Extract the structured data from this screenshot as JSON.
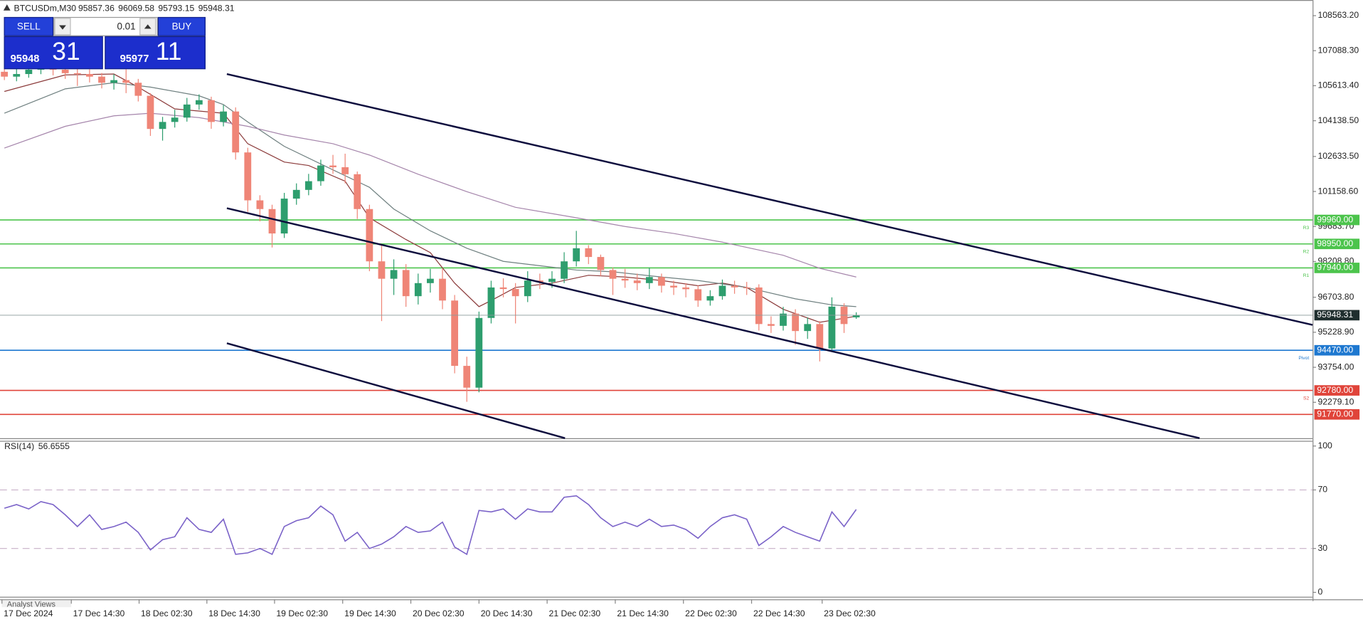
{
  "chart_data": [
    {
      "type": "candlestick",
      "symbol": "BTCUSDm,M30",
      "up_color": "#2e9e6e",
      "down_color": "#ef8577",
      "candles": [
        [
          106200,
          106400,
          105850,
          105995
        ],
        [
          105995,
          106350,
          105800,
          106105
        ],
        [
          106105,
          106500,
          105950,
          106288
        ],
        [
          106288,
          106600,
          106100,
          106362
        ],
        [
          106362,
          106550,
          106050,
          106288
        ],
        [
          106288,
          106450,
          105900,
          106141
        ],
        [
          106141,
          106400,
          105600,
          106105
        ],
        [
          106105,
          106300,
          105750,
          105995
        ],
        [
          105995,
          106150,
          105500,
          105738
        ],
        [
          105738,
          106100,
          105450,
          105848
        ],
        [
          105848,
          106300,
          105300,
          105738
        ],
        [
          105738,
          105900,
          104950,
          105188
        ],
        [
          105188,
          105300,
          103500,
          103793
        ],
        [
          103793,
          104300,
          103300,
          104087
        ],
        [
          104087,
          104600,
          103850,
          104270
        ],
        [
          104270,
          105100,
          104100,
          104821
        ],
        [
          104821,
          105250,
          104600,
          105004
        ],
        [
          105004,
          105150,
          103800,
          104087
        ],
        [
          104087,
          104800,
          103900,
          104527
        ],
        [
          104527,
          104700,
          102500,
          102803
        ],
        [
          102803,
          103000,
          100300,
          100785
        ],
        [
          100785,
          101000,
          99900,
          100418
        ],
        [
          100418,
          100600,
          98800,
          99390
        ],
        [
          99390,
          101100,
          99200,
          100858
        ],
        [
          100858,
          101500,
          100600,
          101225
        ],
        [
          101225,
          101900,
          101000,
          101592
        ],
        [
          101592,
          102500,
          101400,
          102252
        ],
        [
          102252,
          102700,
          101900,
          102180
        ],
        [
          102180,
          102750,
          101500,
          101885
        ],
        [
          101885,
          102000,
          100000,
          100418
        ],
        [
          100418,
          100600,
          97800,
          98216
        ],
        [
          98216,
          98900,
          95700,
          97483
        ],
        [
          97483,
          98300,
          96800,
          97850
        ],
        [
          97850,
          98100,
          96300,
          96749
        ],
        [
          96749,
          97700,
          96400,
          97299
        ],
        [
          97299,
          97900,
          96900,
          97483
        ],
        [
          97483,
          97900,
          96200,
          96565
        ],
        [
          96565,
          96800,
          93500,
          93814
        ],
        [
          93814,
          94200,
          92300,
          92896
        ],
        [
          92896,
          96100,
          92700,
          95832
        ],
        [
          95832,
          97400,
          95600,
          97116
        ],
        [
          97116,
          97500,
          96700,
          97050
        ],
        [
          97050,
          97300,
          95600,
          96749
        ],
        [
          96749,
          97800,
          96500,
          97409
        ],
        [
          97409,
          97700,
          97050,
          97350
        ],
        [
          97350,
          97800,
          97100,
          97483
        ],
        [
          97483,
          98600,
          97300,
          98216
        ],
        [
          98216,
          99500,
          98000,
          98767
        ],
        [
          98767,
          98900,
          98100,
          98400
        ],
        [
          98400,
          98500,
          97600,
          97850
        ],
        [
          97850,
          97950,
          96800,
          97483
        ],
        [
          97483,
          97900,
          97100,
          97409
        ],
        [
          97409,
          97700,
          97000,
          97299
        ],
        [
          97299,
          97950,
          97050,
          97556
        ],
        [
          97556,
          97700,
          96900,
          97189
        ],
        [
          97189,
          97400,
          96800,
          97116
        ],
        [
          97116,
          97300,
          96700,
          97042
        ],
        [
          97042,
          97200,
          96300,
          96565
        ],
        [
          96565,
          97000,
          96350,
          96749
        ],
        [
          96749,
          97450,
          96600,
          97189
        ],
        [
          97189,
          97400,
          96850,
          97120
        ],
        [
          97120,
          97350,
          96800,
          97116
        ],
        [
          97116,
          97250,
          95300,
          95575
        ],
        [
          95575,
          95900,
          95200,
          95500
        ],
        [
          95500,
          96300,
          95300,
          96015
        ],
        [
          96015,
          96200,
          94700,
          95281
        ],
        [
          95281,
          95850,
          94950,
          95575
        ],
        [
          95575,
          95700,
          94000,
          94547
        ],
        [
          94547,
          96700,
          94400,
          96309
        ],
        [
          96309,
          96450,
          95200,
          95575
        ],
        [
          95857.36,
          96069.58,
          95793.15,
          95948.31
        ]
      ],
      "xlim": [
        -0.36,
        107.5
      ],
      "ylim": [
        90768,
        109223
      ],
      "yticks": [
        {
          "value": 92279.1,
          "label": "92279.10"
        },
        {
          "value": 93754,
          "label": "93754.00"
        },
        {
          "value": 95228.9,
          "label": "95228.90"
        },
        {
          "value": 96703.8,
          "label": "96703.80"
        },
        {
          "value": 98208.8,
          "label": "98208.80"
        },
        {
          "value": 99683.7,
          "label": "99683.70"
        },
        {
          "value": 101158.6,
          "label": "101158.60"
        },
        {
          "value": 102633.5,
          "label": "102633.50"
        },
        {
          "value": 104138.5,
          "label": "104138.50"
        },
        {
          "value": 105613.4,
          "label": "105613.40"
        },
        {
          "value": 107088.3,
          "label": "107088.30"
        },
        {
          "value": 108563.2,
          "label": "108563.20"
        }
      ],
      "xticks": [
        {
          "value": -0.2,
          "label": "17 Dec 2024"
        },
        {
          "value": 5.5,
          "label": "17 Dec 14:30"
        },
        {
          "value": 11.07,
          "label": "18 Dec 02:30"
        },
        {
          "value": 16.64,
          "label": "18 Dec 14:30"
        },
        {
          "value": 22.2,
          "label": "19 Dec 02:30"
        },
        {
          "value": 27.8,
          "label": "19 Dec 14:30"
        },
        {
          "value": 33.4,
          "label": "20 Dec 02:30"
        },
        {
          "value": 39,
          "label": "20 Dec 14:30"
        },
        {
          "value": 44.6,
          "label": "21 Dec 02:30"
        },
        {
          "value": 50.2,
          "label": "21 Dec 14:30"
        },
        {
          "value": 55.8,
          "label": "22 Dec 02:30"
        },
        {
          "value": 61.4,
          "label": "22 Dec 14:30"
        },
        {
          "value": 67.2,
          "label": "23 Dec 02:30"
        }
      ],
      "moving_averages": [
        {
          "color": "#8b3a3a",
          "x": [
            0,
            5,
            9,
            11,
            14,
            18,
            20,
            23,
            25,
            28,
            30,
            33,
            35,
            37,
            39,
            40,
            42,
            45,
            48,
            51,
            54,
            57,
            59,
            61,
            64,
            67,
            70
          ],
          "values": [
            105371,
            106068,
            106105,
            105554,
            104637,
            104454,
            103170,
            102399,
            102252,
            101592,
            100051,
            99134,
            98583,
            97299,
            96309,
            96565,
            97116,
            97299,
            97629,
            97556,
            97409,
            97189,
            97299,
            97116,
            96198,
            95648,
            95905
          ]
        },
        {
          "color": "#6f8080",
          "x": [
            0,
            5,
            9,
            12,
            16,
            18,
            20,
            23,
            27,
            30,
            32,
            35,
            38,
            41,
            44,
            47,
            50,
            54,
            57,
            61,
            65,
            68,
            70
          ],
          "values": [
            104454,
            105481,
            105738,
            105554,
            105188,
            104821,
            104087,
            103059,
            102069,
            101335,
            100418,
            99501,
            98767,
            98216,
            98033,
            97850,
            97776,
            97556,
            97409,
            97116,
            96639,
            96382,
            96309
          ]
        },
        {
          "color": "#a585ab",
          "x": [
            0,
            5,
            9,
            12,
            16,
            20,
            23,
            27,
            30,
            34,
            38,
            42,
            47,
            51,
            55,
            59,
            64,
            67,
            70
          ],
          "values": [
            102986,
            103903,
            104344,
            104454,
            104270,
            103903,
            103536,
            103170,
            102693,
            101885,
            101152,
            100491,
            100051,
            99684,
            99390,
            99024,
            98473,
            97923,
            97556
          ]
        }
      ],
      "levels": [
        {
          "value": 99960,
          "label": "99960.00",
          "color": "#4cc44c",
          "tag": "R3"
        },
        {
          "value": 98950,
          "label": "98950.00",
          "color": "#4cc44c",
          "tag": "R2"
        },
        {
          "value": 97940,
          "label": "97940.00",
          "color": "#4cc44c",
          "tag": "R1"
        },
        {
          "value": 94470,
          "label": "94470.00",
          "color": "#1e78d0",
          "tag": "Pivot"
        },
        {
          "value": 92780,
          "label": "92780.00",
          "color": "#e0443a",
          "tag": "S2"
        },
        {
          "value": 91770,
          "label": "91770.00",
          "color": "#e0443a"
        }
      ]
    },
    {
      "type": "line",
      "title": "RSI(14)",
      "color": "#7a62c8",
      "values": [
        57.5,
        60,
        57,
        62,
        60,
        53,
        45,
        53,
        43,
        45,
        48,
        41,
        29,
        36,
        38,
        51,
        43,
        41,
        50,
        26,
        27,
        30,
        26,
        45,
        49,
        51,
        59,
        53,
        35,
        41,
        30,
        33,
        38,
        45,
        41,
        42,
        48,
        31,
        26,
        56,
        55,
        57,
        50,
        57,
        55,
        55,
        65,
        66,
        60,
        51,
        45,
        48,
        45,
        50,
        45,
        46,
        43,
        37,
        45,
        51,
        53,
        50,
        32,
        38,
        45,
        41,
        38,
        35,
        55,
        45,
        56.6555
      ],
      "xlim": [
        -0.36,
        107.5
      ],
      "ylim": [
        0,
        100
      ],
      "yticks": [
        0,
        30,
        70,
        100
      ],
      "levels": [
        30,
        70
      ]
    }
  ],
  "trade_panel": {
    "sell": "SELL",
    "lot": "0.01",
    "buy": "BUY",
    "bid_main": "95948",
    "bid_pips": "31",
    "ask_main": "95977",
    "ask_pips": "11"
  },
  "footer_tab": "Analyst Views"
}
